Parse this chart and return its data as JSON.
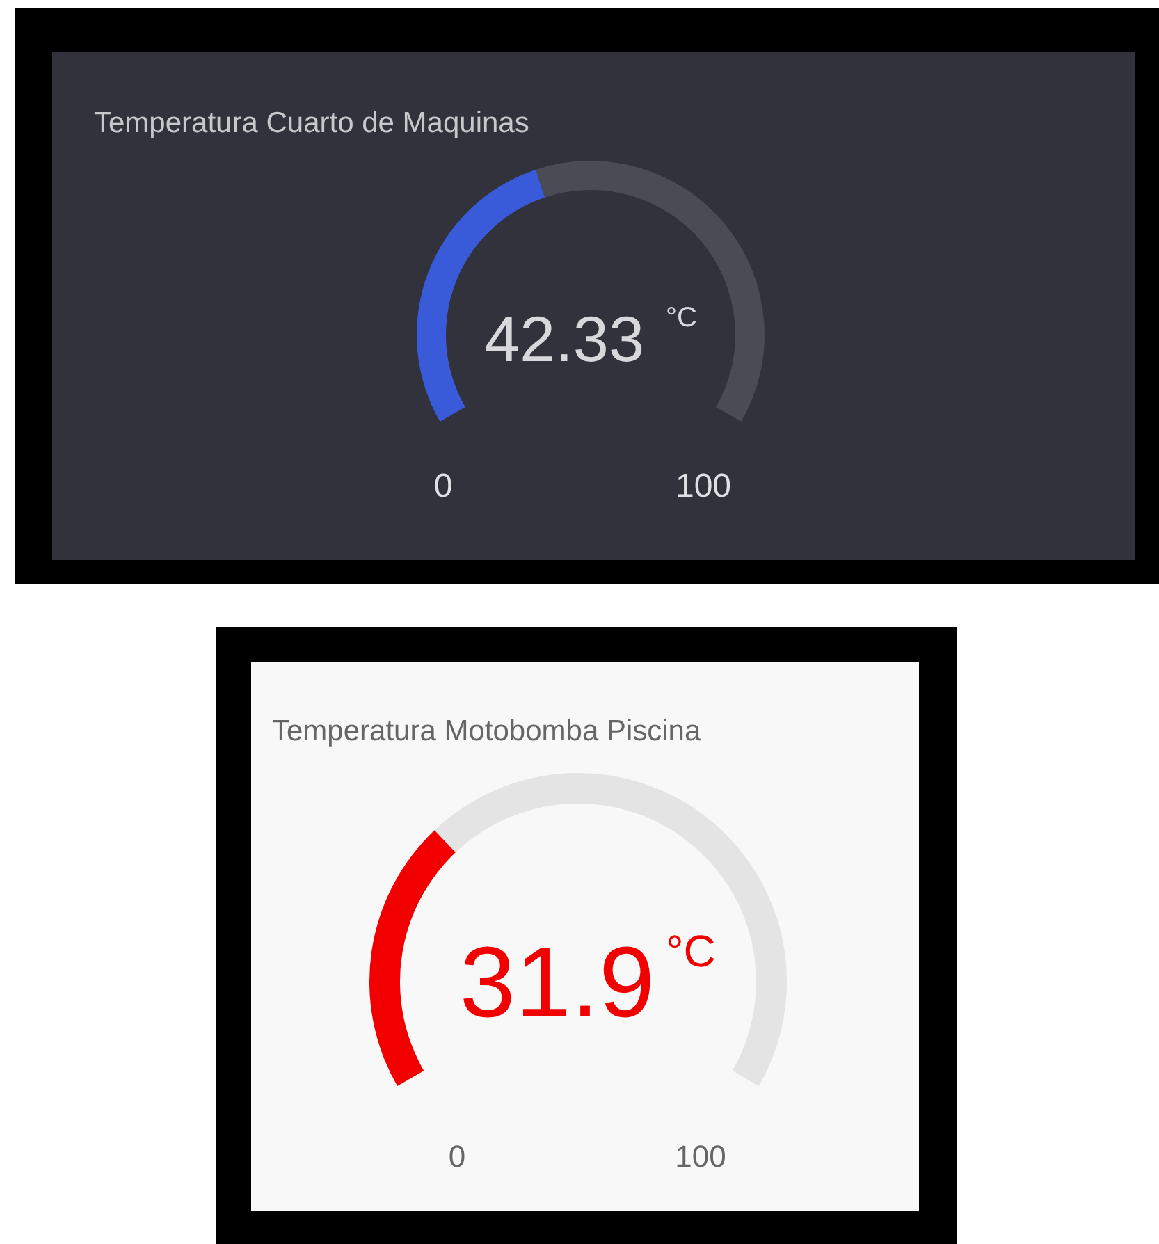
{
  "chart_data": [
    {
      "type": "donut",
      "title": "Temperatura Cuarto de Maquinas",
      "categories": [
        null,
        null
      ],
      "values": [
        42.33,
        57.67
      ],
      "colors": [
        "#3a5bd9",
        "#4b4b55"
      ],
      "value_labels": [
        "42.33",
        null
      ],
      "annotations": [
        "°C",
        "0",
        "100"
      ]
    },
    {
      "type": "donut",
      "title": "Temperatura Motobomba Piscina",
      "categories": [
        null,
        null
      ],
      "values": [
        31.9,
        68.1
      ],
      "colors": [
        "#f20000",
        "#e4e4e4"
      ],
      "value_labels": [
        "31.9",
        null
      ],
      "annotations": [
        "°C",
        "0",
        "100"
      ]
    }
  ]
}
